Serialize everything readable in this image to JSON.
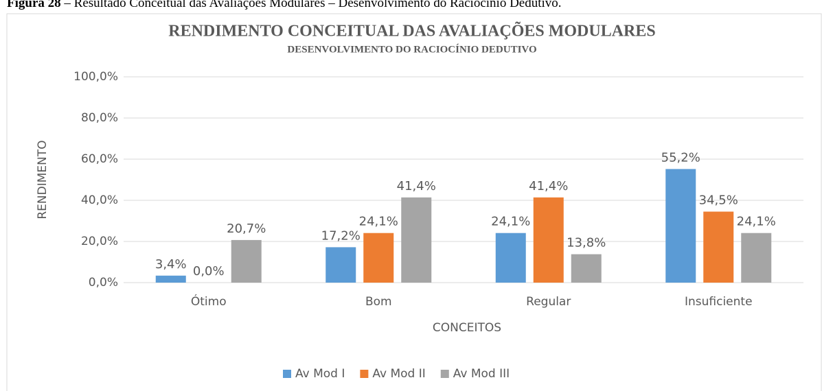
{
  "caption": {
    "label": "Figura 28",
    "text": "– Resultado Conceitual das Avaliações Modulares – Desenvolvimento do Raciocínio Dedutivo."
  },
  "chart_data": {
    "type": "bar",
    "title": "RENDIMENTO CONCEITUAL DAS AVALIAÇÕES MODULARES",
    "subtitle": "DESENVOLVIMENTO  DO RACIOCÍNIO DEDUTIVO",
    "x_label": "CONCEITOS",
    "y_label": "RENDIMENTO",
    "categories": [
      "Ótimo",
      "Bom",
      "Regular",
      "Insuficiente"
    ],
    "series": [
      {
        "name": "Av Mod I",
        "color": "#5b9bd5",
        "values": [
          3.4,
          17.2,
          24.1,
          55.2
        ],
        "value_labels": [
          "3,4%",
          "17,2%",
          "24,1%",
          "55,2%"
        ]
      },
      {
        "name": "Av Mod II",
        "color": "#ed7d31",
        "values": [
          0.0,
          24.1,
          41.4,
          34.5
        ],
        "value_labels": [
          "0,0%",
          "24,1%",
          "41,4%",
          "34,5%"
        ]
      },
      {
        "name": "Av Mod III",
        "color": "#a5a5a5",
        "values": [
          20.7,
          41.4,
          13.8,
          24.1
        ],
        "value_labels": [
          "20,7%",
          "41,4%",
          "13,8%",
          "24,1%"
        ]
      }
    ],
    "ylim": [
      0,
      100
    ],
    "yticks": [
      {
        "value": 0,
        "label": "0,0%"
      },
      {
        "value": 20,
        "label": "20,0%"
      },
      {
        "value": 40,
        "label": "40,0%"
      },
      {
        "value": 60,
        "label": "60,0%"
      },
      {
        "value": 80,
        "label": "80,0%"
      },
      {
        "value": 100,
        "label": "100,0%"
      }
    ],
    "grid": true,
    "legend": "bottom"
  }
}
